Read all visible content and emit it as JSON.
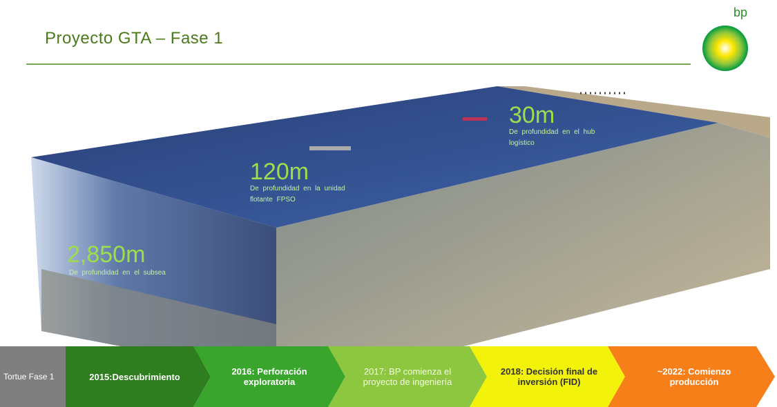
{
  "header": {
    "title": "Proyecto GTA – Fase 1",
    "logo": "bp"
  },
  "depths": [
    {
      "depth": "30m",
      "description": "De profundidad en el hub logístico"
    },
    {
      "depth": "120m",
      "description": "De profundidad en la unidad flotante FPSO"
    },
    {
      "depth": "2,850m",
      "description": "De profundidad en el subsea"
    }
  ],
  "timeline": {
    "label": "Tortue Fase 1",
    "steps": [
      "2015:Descubrimiento",
      "2016: Perforación exploratoria",
      "2017: BP comienza el proyecto de ingeniería",
      "2018: Decisión final de inversión (FID)",
      "~2022: Comienzo producción"
    ]
  }
}
